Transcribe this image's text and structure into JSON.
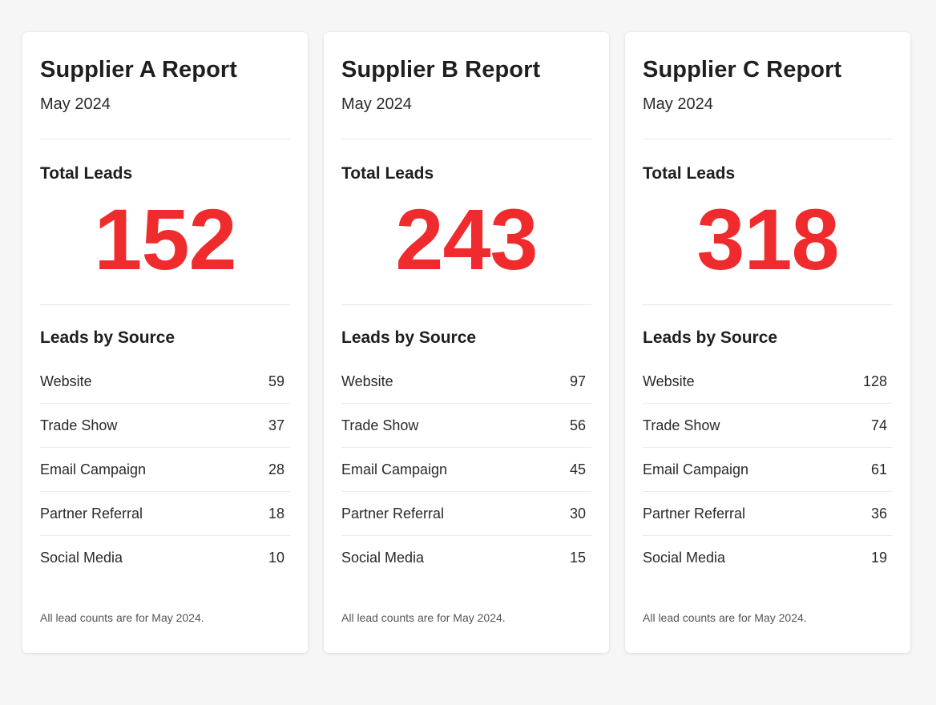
{
  "cards": [
    {
      "title": "Supplier A Report",
      "period": "May 2024",
      "total_label": "Total Leads",
      "total_value": "152",
      "sources_label": "Leads by Source",
      "sources": [
        {
          "name": "Website",
          "count": "59"
        },
        {
          "name": "Trade Show",
          "count": "37"
        },
        {
          "name": "Email Campaign",
          "count": "28"
        },
        {
          "name": "Partner Referral",
          "count": "18"
        },
        {
          "name": "Social Media",
          "count": "10"
        }
      ],
      "footnote": "All lead counts are for May 2024."
    },
    {
      "title": "Supplier B Report",
      "period": "May 2024",
      "total_label": "Total Leads",
      "total_value": "243",
      "sources_label": "Leads by Source",
      "sources": [
        {
          "name": "Website",
          "count": "97"
        },
        {
          "name": "Trade Show",
          "count": "56"
        },
        {
          "name": "Email Campaign",
          "count": "45"
        },
        {
          "name": "Partner Referral",
          "count": "30"
        },
        {
          "name": "Social Media",
          "count": "15"
        }
      ],
      "footnote": "All lead counts are for May 2024."
    },
    {
      "title": "Supplier C Report",
      "period": "May 2024",
      "total_label": "Total Leads",
      "total_value": "318",
      "sources_label": "Leads by Source",
      "sources": [
        {
          "name": "Website",
          "count": "128"
        },
        {
          "name": "Trade Show",
          "count": "74"
        },
        {
          "name": "Email Campaign",
          "count": "61"
        },
        {
          "name": "Partner Referral",
          "count": "36"
        },
        {
          "name": "Social Media",
          "count": "19"
        }
      ],
      "footnote": "All lead counts are for May 2024."
    }
  ],
  "colors": {
    "accent": "#ef2b2d",
    "background": "#f6f6f6",
    "card": "#ffffff"
  }
}
